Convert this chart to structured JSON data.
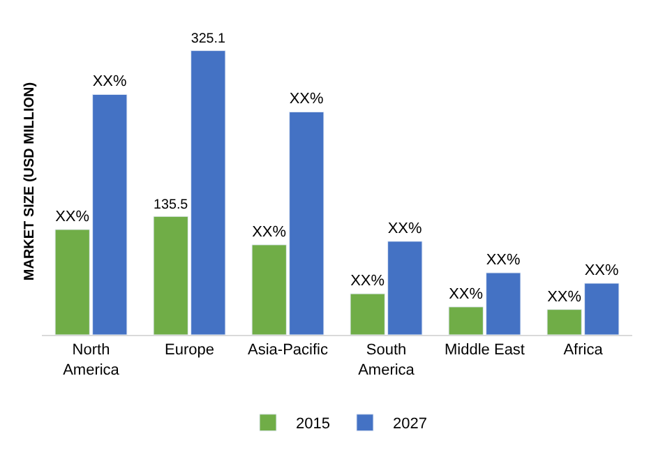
{
  "chart_data": {
    "type": "bar",
    "ylabel": "MARKET SIZE (USD MILLION)",
    "categories": [
      "North\nAmerica",
      "Europe",
      "Asia-Pacific",
      "South\nAmerica",
      "Middle East",
      "Africa"
    ],
    "series": [
      {
        "name": "2015",
        "color": "#70ad47",
        "values": [
          120.5,
          135.5,
          103,
          47,
          32,
          29
        ],
        "value_labels": [
          "XX%",
          "135.5",
          "XX%",
          "XX%",
          "XX%",
          "XX%"
        ]
      },
      {
        "name": "2027",
        "color": "#4472c4",
        "values": [
          275,
          325.1,
          255,
          107,
          71,
          59
        ],
        "value_labels": [
          "XX%",
          "325.1",
          "XX%",
          "XX%",
          "XX%",
          "XX%"
        ]
      }
    ],
    "legend": "bottom"
  }
}
